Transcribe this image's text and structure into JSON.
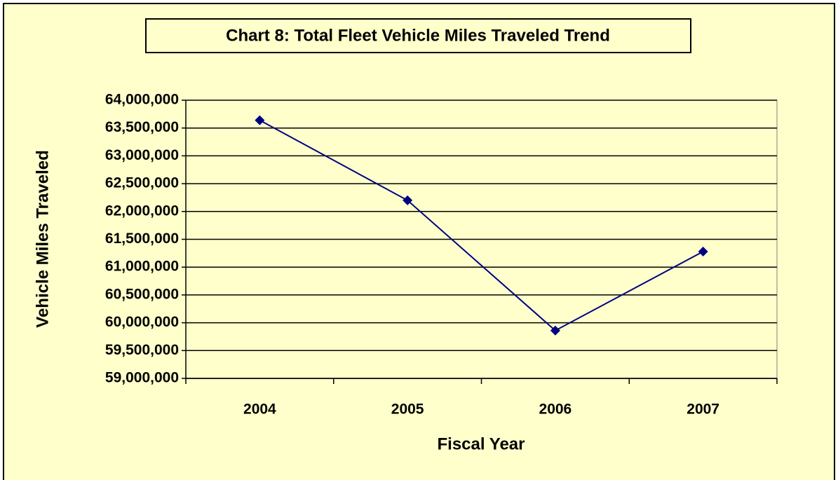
{
  "chart_data": {
    "type": "line",
    "title": "Chart 8:  Total Fleet Vehicle Miles Traveled Trend",
    "x_label": "Fiscal Year",
    "y_label": "Vehicle Miles Traveled",
    "categories": [
      "2004",
      "2005",
      "2006",
      "2007"
    ],
    "values": [
      63640000,
      62200000,
      59860000,
      61280000
    ],
    "color": "#000080",
    "ylim": [
      59000000,
      64000000
    ],
    "yticks": [
      {
        "value": 59000000,
        "label": "59,000,000"
      },
      {
        "value": 59500000,
        "label": "59,500,000"
      },
      {
        "value": 60000000,
        "label": "60,000,000"
      },
      {
        "value": 60500000,
        "label": "60,500,000"
      },
      {
        "value": 61000000,
        "label": "61,000,000"
      },
      {
        "value": 61500000,
        "label": "61,500,000"
      },
      {
        "value": 62000000,
        "label": "62,000,000"
      },
      {
        "value": 62500000,
        "label": "62,500,000"
      },
      {
        "value": 63000000,
        "label": "63,000,000"
      },
      {
        "value": 63500000,
        "label": "63,500,000"
      },
      {
        "value": 64000000,
        "label": "64,000,000"
      }
    ],
    "grid": true
  }
}
